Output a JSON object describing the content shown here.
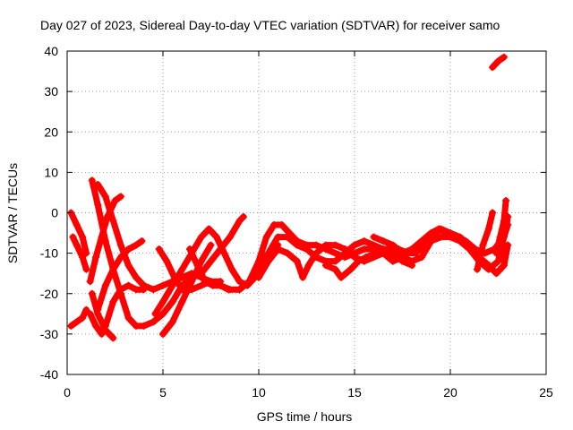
{
  "chart_data": {
    "type": "scatter",
    "title": "Day 027 of 2023, Sidereal Day-to-day VTEC variation (SDTVAR) for receiver samo",
    "xlabel": "GPS time / hours",
    "ylabel": "SDTVAR / TECUs",
    "xlim": [
      0,
      25
    ],
    "ylim": [
      -40,
      40
    ],
    "xticks": [
      0,
      5,
      10,
      15,
      20,
      25
    ],
    "yticks": [
      -40,
      -30,
      -20,
      -10,
      0,
      10,
      20,
      30,
      40
    ],
    "grid": true,
    "color": "#ff0000",
    "series": [
      {
        "name": "s1",
        "points": [
          [
            0.2,
            0
          ],
          [
            0.5,
            -3
          ],
          [
            0.8,
            -6
          ],
          [
            1.0,
            -10
          ]
        ]
      },
      {
        "name": "s2",
        "points": [
          [
            0.3,
            -6
          ],
          [
            0.5,
            -8
          ],
          [
            0.8,
            -11
          ],
          [
            1.0,
            -14
          ]
        ]
      },
      {
        "name": "s3",
        "points": [
          [
            0.2,
            -28
          ],
          [
            0.5,
            -27
          ],
          [
            0.8,
            -26
          ],
          [
            1.0,
            -24
          ]
        ]
      },
      {
        "name": "s4",
        "points": [
          [
            1.2,
            -25
          ],
          [
            1.5,
            -28
          ],
          [
            1.8,
            -30
          ]
        ]
      },
      {
        "name": "s5",
        "points": [
          [
            1.3,
            8
          ],
          [
            1.6,
            2
          ],
          [
            2.0,
            -7
          ],
          [
            2.4,
            -14
          ],
          [
            2.8,
            -20
          ],
          [
            3.2,
            -26
          ],
          [
            3.6,
            -28
          ],
          [
            4.0,
            -28
          ],
          [
            4.5,
            -27
          ],
          [
            5.0,
            -25
          ],
          [
            5.5,
            -22
          ],
          [
            6.0,
            -18
          ],
          [
            6.5,
            -16
          ],
          [
            7.0,
            -15
          ],
          [
            7.5,
            -12
          ],
          [
            8.0,
            -9
          ],
          [
            8.5,
            -6
          ],
          [
            9.0,
            -2
          ],
          [
            9.2,
            -1
          ]
        ]
      },
      {
        "name": "s6",
        "points": [
          [
            1.2,
            -17
          ],
          [
            1.5,
            -11
          ],
          [
            1.8,
            -6
          ],
          [
            2.1,
            -1
          ],
          [
            2.5,
            3
          ],
          [
            2.8,
            4
          ]
        ]
      },
      {
        "name": "s7",
        "points": [
          [
            1.3,
            -20
          ],
          [
            1.6,
            -25
          ],
          [
            2.0,
            -29
          ],
          [
            2.4,
            -31
          ]
        ]
      },
      {
        "name": "s8",
        "points": [
          [
            1.6,
            -24
          ],
          [
            2.0,
            -18
          ],
          [
            2.4,
            -14
          ],
          [
            2.8,
            -11
          ],
          [
            3.2,
            -9
          ],
          [
            3.6,
            -8
          ],
          [
            3.9,
            -7
          ]
        ]
      },
      {
        "name": "s9",
        "points": [
          [
            1.6,
            7
          ],
          [
            2.0,
            4
          ],
          [
            2.4,
            -2
          ],
          [
            2.8,
            -8
          ],
          [
            3.2,
            -13
          ],
          [
            3.6,
            -16
          ],
          [
            4.0,
            -18
          ],
          [
            4.5,
            -19
          ],
          [
            5.0,
            -18
          ],
          [
            5.5,
            -17
          ],
          [
            6.0,
            -16
          ],
          [
            6.5,
            -15
          ],
          [
            7.0,
            -16
          ],
          [
            7.5,
            -17
          ],
          [
            8.0,
            -18
          ],
          [
            8.5,
            -19
          ],
          [
            9.0,
            -19
          ],
          [
            9.5,
            -17
          ]
        ]
      },
      {
        "name": "s10",
        "points": [
          [
            2.0,
            -28
          ],
          [
            2.4,
            -22
          ],
          [
            2.8,
            -19
          ],
          [
            3.2,
            -18
          ],
          [
            3.6,
            -19
          ],
          [
            4.0,
            -19
          ]
        ]
      },
      {
        "name": "s11",
        "points": [
          [
            4.6,
            -25
          ],
          [
            5.0,
            -22
          ],
          [
            5.5,
            -18
          ],
          [
            6.0,
            -14
          ],
          [
            6.5,
            -10
          ],
          [
            7.0,
            -6
          ],
          [
            7.4,
            -4
          ],
          [
            7.8,
            -6
          ],
          [
            8.2,
            -10
          ],
          [
            8.6,
            -14
          ],
          [
            9.0,
            -17
          ],
          [
            9.4,
            -18
          ],
          [
            9.8,
            -16
          ],
          [
            10.2,
            -13
          ],
          [
            10.6,
            -10
          ],
          [
            11.0,
            -8
          ]
        ]
      },
      {
        "name": "s12",
        "points": [
          [
            4.8,
            -9
          ],
          [
            5.2,
            -12
          ],
          [
            5.6,
            -16
          ],
          [
            6.0,
            -19
          ],
          [
            6.5,
            -19
          ],
          [
            7.0,
            -18
          ],
          [
            7.5,
            -17
          ],
          [
            8.0,
            -17
          ]
        ]
      },
      {
        "name": "s13",
        "points": [
          [
            5.0,
            -30
          ],
          [
            5.5,
            -27
          ],
          [
            6.0,
            -22
          ],
          [
            6.5,
            -17
          ],
          [
            7.0,
            -12
          ],
          [
            7.5,
            -8
          ]
        ]
      },
      {
        "name": "s14",
        "points": [
          [
            6.4,
            -9
          ],
          [
            6.8,
            -13
          ],
          [
            7.2,
            -17
          ],
          [
            7.6,
            -18
          ],
          [
            8.0,
            -18
          ],
          [
            8.4,
            -19
          ]
        ]
      },
      {
        "name": "s15",
        "points": [
          [
            9.0,
            -19
          ],
          [
            9.5,
            -17
          ],
          [
            10.0,
            -12
          ],
          [
            10.4,
            -6
          ],
          [
            10.8,
            -3
          ],
          [
            11.2,
            -3
          ],
          [
            11.6,
            -5
          ],
          [
            12.0,
            -7
          ],
          [
            12.5,
            -8
          ],
          [
            13.0,
            -8
          ],
          [
            13.5,
            -9
          ],
          [
            14.0,
            -10
          ],
          [
            14.5,
            -11
          ],
          [
            15.0,
            -10
          ],
          [
            15.5,
            -9
          ],
          [
            16.0,
            -9
          ],
          [
            16.5,
            -9
          ],
          [
            17.0,
            -9
          ]
        ]
      },
      {
        "name": "s16",
        "points": [
          [
            9.5,
            -17
          ],
          [
            10.0,
            -14
          ],
          [
            10.5,
            -10
          ],
          [
            11.0,
            -6
          ],
          [
            11.5,
            -6
          ],
          [
            12.0,
            -8
          ],
          [
            12.5,
            -9
          ],
          [
            13.0,
            -11
          ],
          [
            13.5,
            -12
          ],
          [
            14.0,
            -12
          ],
          [
            14.5,
            -10
          ],
          [
            15.0,
            -8
          ],
          [
            15.5,
            -7
          ],
          [
            16.0,
            -8
          ],
          [
            16.5,
            -9
          ],
          [
            17.0,
            -10
          ],
          [
            17.5,
            -12
          ],
          [
            18.0,
            -13
          ]
        ]
      },
      {
        "name": "s17",
        "points": [
          [
            10.0,
            -16
          ],
          [
            10.5,
            -12
          ],
          [
            11.0,
            -9
          ],
          [
            11.5,
            -10
          ],
          [
            12.0,
            -12
          ],
          [
            12.3,
            -16
          ],
          [
            12.6,
            -13
          ],
          [
            13.0,
            -10
          ],
          [
            13.5,
            -8
          ],
          [
            14.0,
            -8
          ],
          [
            14.5,
            -9
          ],
          [
            15.0,
            -11
          ],
          [
            15.5,
            -12
          ],
          [
            16.0,
            -11
          ],
          [
            16.5,
            -10
          ],
          [
            17.0,
            -12
          ],
          [
            17.5,
            -11
          ],
          [
            18.0,
            -12
          ],
          [
            18.5,
            -11
          ],
          [
            19.0,
            -7
          ],
          [
            19.5,
            -6
          ],
          [
            20.0,
            -6
          ],
          [
            20.5,
            -7
          ],
          [
            21.0,
            -9
          ],
          [
            21.5,
            -12
          ],
          [
            22.0,
            -14
          ],
          [
            22.5,
            -12
          ],
          [
            22.9,
            -4
          ],
          [
            23.0,
            -1
          ]
        ]
      },
      {
        "name": "s18",
        "points": [
          [
            13.5,
            -13
          ],
          [
            14.0,
            -14
          ],
          [
            14.3,
            -16
          ],
          [
            14.8,
            -14
          ],
          [
            15.2,
            -12
          ],
          [
            15.6,
            -11
          ],
          [
            16.2,
            -10
          ],
          [
            16.8,
            -9
          ],
          [
            17.3,
            -9
          ],
          [
            17.8,
            -10
          ],
          [
            18.2,
            -10
          ],
          [
            18.6,
            -8
          ],
          [
            19.0,
            -6
          ],
          [
            19.5,
            -4
          ],
          [
            20.0,
            -5
          ],
          [
            20.5,
            -6
          ],
          [
            21.0,
            -8
          ],
          [
            21.5,
            -11
          ],
          [
            22.0,
            -13
          ],
          [
            22.4,
            -15
          ],
          [
            22.8,
            -13
          ],
          [
            23.0,
            -8
          ]
        ]
      },
      {
        "name": "s19",
        "points": [
          [
            16.0,
            -6
          ],
          [
            16.5,
            -7
          ],
          [
            17.0,
            -8
          ],
          [
            17.5,
            -10
          ],
          [
            18.0,
            -9
          ],
          [
            18.5,
            -7
          ],
          [
            19.0,
            -5
          ],
          [
            19.4,
            -4
          ],
          [
            19.8,
            -5
          ],
          [
            20.3,
            -6
          ],
          [
            20.8,
            -7
          ],
          [
            21.3,
            -9
          ],
          [
            21.8,
            -10
          ],
          [
            22.3,
            -9
          ],
          [
            22.8,
            -6
          ],
          [
            23.0,
            -3
          ]
        ]
      },
      {
        "name": "s20",
        "points": [
          [
            21.4,
            -14
          ],
          [
            21.7,
            -8
          ],
          [
            22.0,
            -4
          ],
          [
            22.2,
            0
          ]
        ]
      },
      {
        "name": "s21",
        "points": [
          [
            22.4,
            -10
          ],
          [
            22.6,
            -6
          ],
          [
            22.8,
            -2
          ],
          [
            22.9,
            3
          ]
        ]
      },
      {
        "name": "s22",
        "points": [
          [
            22.2,
            36
          ],
          [
            22.5,
            37.5
          ],
          [
            22.8,
            38.5
          ]
        ]
      }
    ]
  }
}
